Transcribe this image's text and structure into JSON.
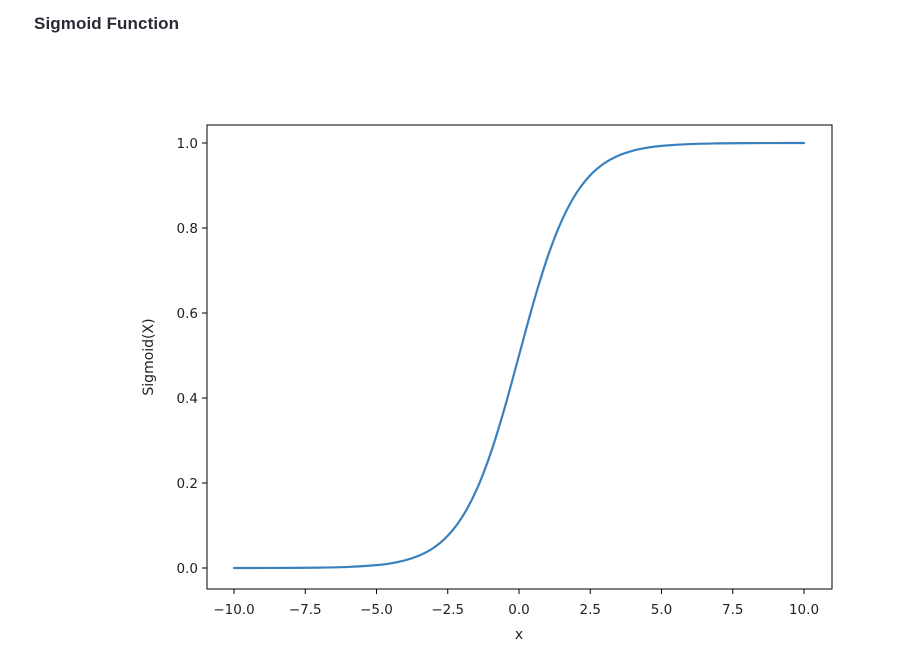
{
  "header": {
    "title": "Sigmoid Function"
  },
  "chart_data": {
    "type": "line",
    "function": "sigmoid",
    "xlabel": "x",
    "ylabel": "Sigmoid(X)",
    "xlim": [
      -10.0,
      10.0
    ],
    "ylim": [
      0.0,
      1.0
    ],
    "grid": false,
    "x_ticks": [
      -10.0,
      -7.5,
      -5.0,
      -2.5,
      0.0,
      2.5,
      5.0,
      7.5,
      10.0
    ],
    "x_tick_labels": [
      "−10.0",
      "−7.5",
      "−5.0",
      "−2.5",
      "0.0",
      "2.5",
      "5.0",
      "7.5",
      "10.0"
    ],
    "y_ticks": [
      0.0,
      0.2,
      0.4,
      0.6,
      0.8,
      1.0
    ],
    "y_tick_labels": [
      "0.0",
      "0.2",
      "0.4",
      "0.6",
      "0.8",
      "1.0"
    ],
    "series": [
      {
        "color": "#3a80bd",
        "x": [
          -10.0,
          -9.0,
          -8.0,
          -7.0,
          -6.0,
          -5.0,
          -4.5,
          -4.0,
          -3.5,
          -3.0,
          -2.5,
          -2.0,
          -1.5,
          -1.0,
          -0.5,
          0.0,
          0.5,
          1.0,
          1.5,
          2.0,
          2.5,
          3.0,
          3.5,
          4.0,
          4.5,
          5.0,
          6.0,
          7.0,
          8.0,
          9.0,
          10.0
        ],
        "y": [
          0.0,
          0.0001,
          0.0003,
          0.0009,
          0.0025,
          0.0067,
          0.011,
          0.018,
          0.0293,
          0.0474,
          0.0759,
          0.1192,
          0.1824,
          0.2689,
          0.3775,
          0.5,
          0.6225,
          0.7311,
          0.8176,
          0.8808,
          0.9241,
          0.9526,
          0.9707,
          0.982,
          0.989,
          0.9933,
          0.9975,
          0.9991,
          0.9997,
          0.9999,
          1.0
        ]
      }
    ]
  }
}
